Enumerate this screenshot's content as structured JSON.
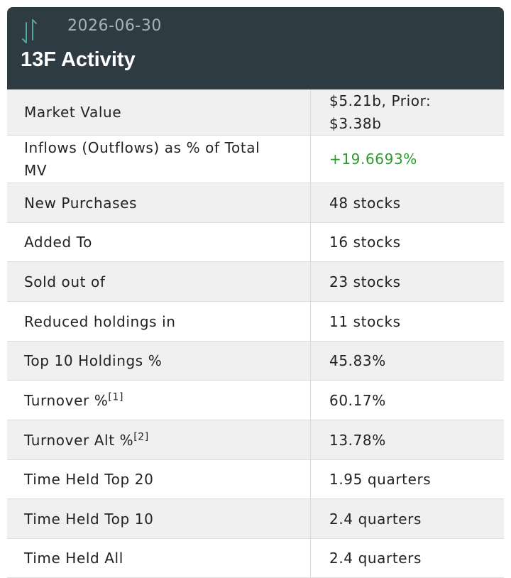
{
  "header": {
    "date": "2026-06-30",
    "title": "13F Activity"
  },
  "table": {
    "rows": [
      {
        "label": "Market Value",
        "value": "$5.21b, Prior: $3.38b"
      },
      {
        "label": "Inflows (Outflows) as % of Total MV",
        "value": "+19.6693%"
      },
      {
        "label": "New Purchases",
        "value": "48 stocks"
      },
      {
        "label": "Added To",
        "value": "16 stocks"
      },
      {
        "label": "Sold out of",
        "value": "23 stocks"
      },
      {
        "label": "Reduced holdings in",
        "value": "11 stocks"
      },
      {
        "label": "Top 10 Holdings %",
        "value": "45.83%"
      },
      {
        "label": "Turnover %",
        "note": "[1]",
        "value": "60.17%"
      },
      {
        "label": "Turnover Alt %",
        "note": "[2]",
        "value": "13.78%"
      },
      {
        "label": "Time Held Top 20",
        "value": "1.95 quarters"
      },
      {
        "label": "Time Held Top 10",
        "value": "2.4 quarters"
      },
      {
        "label": "Time Held All",
        "value": "2.4 quarters"
      }
    ]
  }
}
